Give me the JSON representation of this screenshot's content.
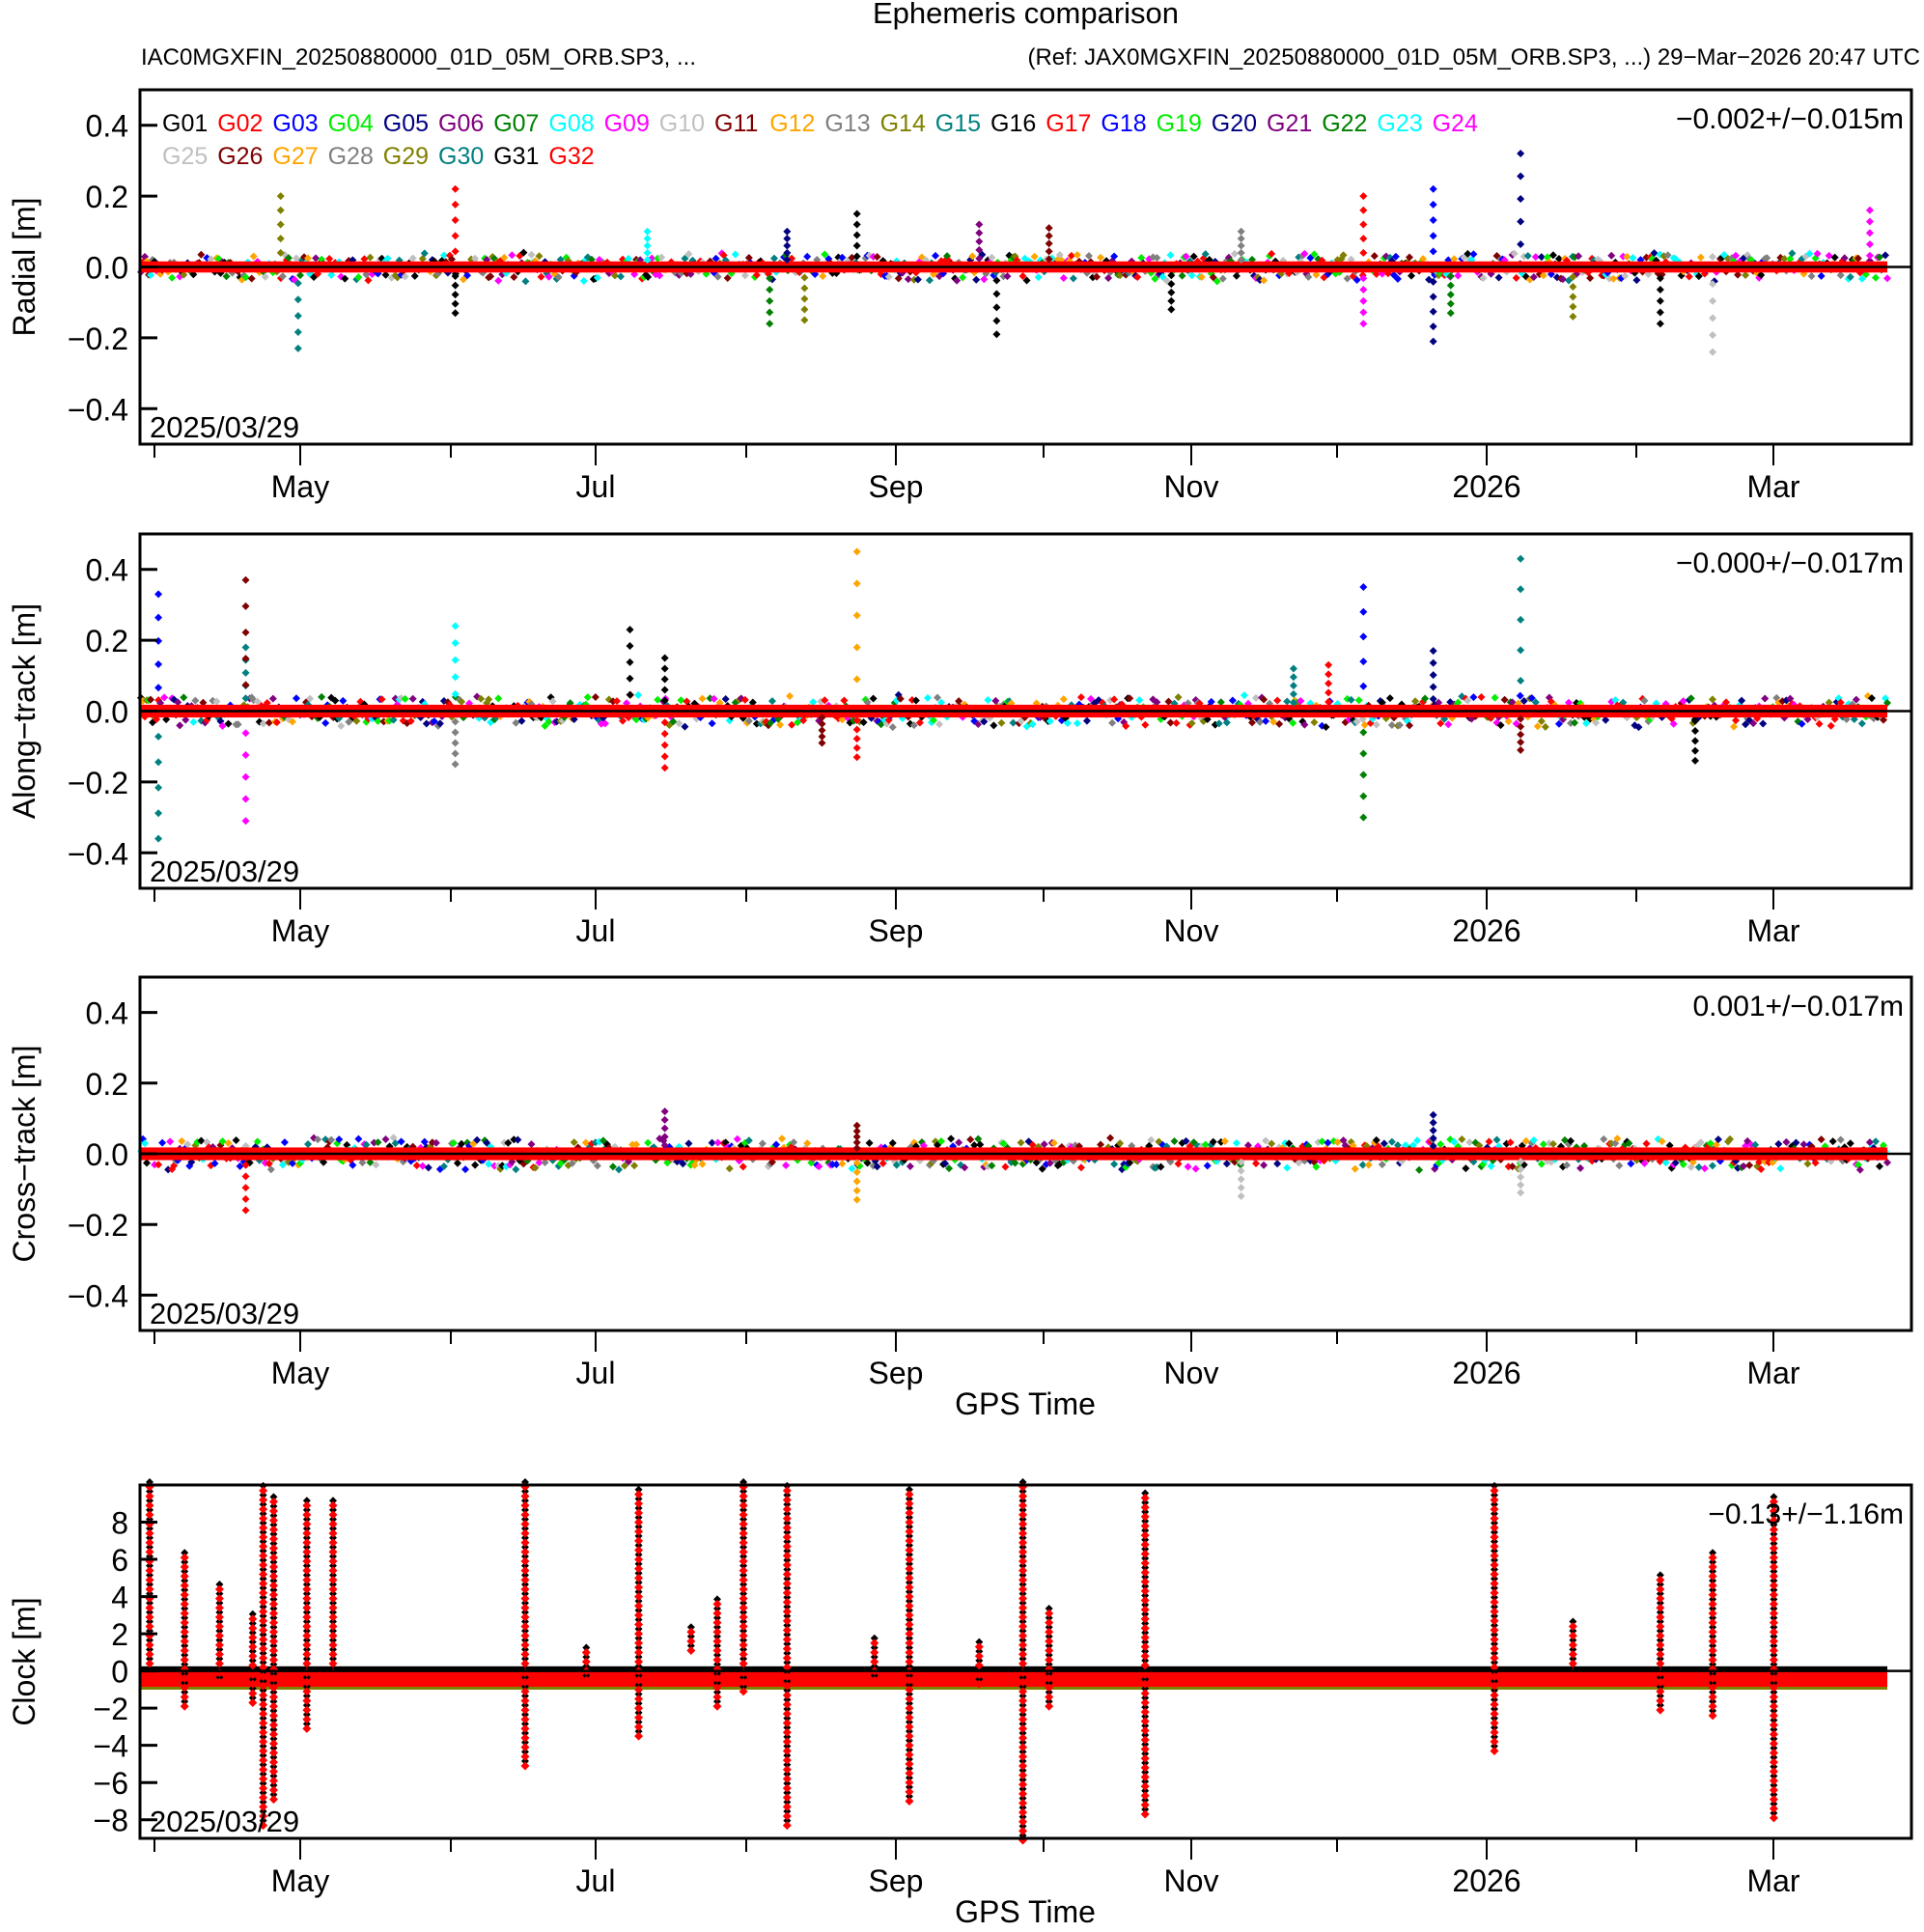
{
  "header": {
    "title": "Ephemeris comparison",
    "subtitle_left": "IAC0MGXFIN_20250880000_01D_05M_ORB.SP3, ...",
    "subtitle_right": "(Ref: JAX0MGXFIN_20250880000_01D_05M_ORB.SP3, ...)  29−Mar−2026 20:47 UTC"
  },
  "chart_data": [
    {
      "type": "scatter",
      "title": "Radial",
      "ylabel": "Radial [m]",
      "xlabel": "",
      "ylim": [
        -0.5,
        0.5
      ],
      "yticks": [
        "0.4",
        "0.2",
        "0.0",
        "−0.2",
        "−0.4"
      ],
      "ytick_values": [
        0.4,
        0.2,
        0.0,
        -0.2,
        -0.4
      ],
      "stat_label": "−0.002+/−0.015m",
      "start_label": "2025/03/29",
      "noise": 0.035,
      "spikes": [
        [
          0.08,
          0.2
        ],
        [
          0.09,
          -0.23
        ],
        [
          0.18,
          0.22
        ],
        [
          0.18,
          -0.13
        ],
        [
          0.29,
          0.1
        ],
        [
          0.36,
          -0.16
        ],
        [
          0.37,
          0.1
        ],
        [
          0.38,
          -0.15
        ],
        [
          0.41,
          0.15
        ],
        [
          0.48,
          0.12
        ],
        [
          0.49,
          -0.19
        ],
        [
          0.52,
          0.11
        ],
        [
          0.59,
          -0.12
        ],
        [
          0.63,
          0.1
        ],
        [
          0.7,
          0.2
        ],
        [
          0.7,
          -0.16
        ],
        [
          0.74,
          0.22
        ],
        [
          0.74,
          -0.21
        ],
        [
          0.75,
          -0.13
        ],
        [
          0.79,
          0.32
        ],
        [
          0.82,
          -0.14
        ],
        [
          0.87,
          -0.16
        ],
        [
          0.9,
          -0.24
        ],
        [
          0.99,
          0.16
        ]
      ]
    },
    {
      "type": "scatter",
      "title": "Along-track",
      "ylabel": "Along−track [m]",
      "xlabel": "",
      "ylim": [
        -0.5,
        0.5
      ],
      "yticks": [
        "0.4",
        "0.2",
        "0.0",
        "−0.2",
        "−0.4"
      ],
      "ytick_values": [
        0.4,
        0.2,
        0.0,
        -0.2,
        -0.4
      ],
      "stat_label": "−0.000+/−0.017m",
      "start_label": "2025/03/29",
      "noise": 0.04,
      "spikes": [
        [
          0.01,
          0.33
        ],
        [
          0.01,
          -0.36
        ],
        [
          0.06,
          0.18
        ],
        [
          0.06,
          0.37
        ],
        [
          0.06,
          -0.31
        ],
        [
          0.18,
          0.24
        ],
        [
          0.18,
          -0.15
        ],
        [
          0.28,
          0.23
        ],
        [
          0.3,
          0.15
        ],
        [
          0.3,
          -0.16
        ],
        [
          0.39,
          -0.09
        ],
        [
          0.41,
          0.45
        ],
        [
          0.41,
          -0.13
        ],
        [
          0.66,
          0.12
        ],
        [
          0.68,
          0.13
        ],
        [
          0.7,
          0.35
        ],
        [
          0.7,
          -0.3
        ],
        [
          0.74,
          0.17
        ],
        [
          0.79,
          0.43
        ],
        [
          0.79,
          -0.11
        ],
        [
          0.89,
          -0.14
        ]
      ]
    },
    {
      "type": "scatter",
      "title": "Cross-track",
      "ylabel": "Cross−track [m]",
      "xlabel": "GPS Time",
      "ylim": [
        -0.5,
        0.5
      ],
      "yticks": [
        "0.4",
        "0.2",
        "0.0",
        "−0.2",
        "−0.4"
      ],
      "ytick_values": [
        0.4,
        0.2,
        0.0,
        -0.2,
        -0.4
      ],
      "stat_label": "0.001+/−0.017m",
      "start_label": "2025/03/29",
      "noise": 0.04,
      "spikes": [
        [
          0.06,
          -0.16
        ],
        [
          0.3,
          0.12
        ],
        [
          0.41,
          -0.13
        ],
        [
          0.41,
          0.08
        ],
        [
          0.63,
          -0.12
        ],
        [
          0.74,
          0.11
        ],
        [
          0.79,
          -0.11
        ]
      ]
    },
    {
      "type": "scatter",
      "title": "Clock",
      "ylabel": "Clock [m]",
      "xlabel": "GPS Time",
      "ylim": [
        -9,
        10
      ],
      "yticks": [
        "8",
        "6",
        "4",
        "2",
        "0",
        "−2",
        "−4",
        "−6",
        "−8"
      ],
      "ytick_values": [
        8,
        6,
        4,
        2,
        0,
        -2,
        -4,
        -6,
        -8
      ],
      "stat_label": "−0.13+/−1.16m",
      "start_label": "2025/03/29",
      "baseline": -0.4,
      "spikes": [
        [
          0.005,
          10,
          0.5
        ],
        [
          0.025,
          6.4,
          -1.8
        ],
        [
          0.045,
          4.9,
          -0.5
        ],
        [
          0.064,
          3,
          -1.6
        ],
        [
          0.07,
          10,
          -8.2
        ],
        [
          0.076,
          9.5,
          -6.8
        ],
        [
          0.095,
          9.4,
          -3
        ],
        [
          0.11,
          9.4,
          0
        ],
        [
          0.22,
          10,
          -5
        ],
        [
          0.255,
          1.3,
          -0.4
        ],
        [
          0.285,
          10,
          -3.4
        ],
        [
          0.315,
          2.2,
          1.2
        ],
        [
          0.33,
          4,
          -1.8
        ],
        [
          0.345,
          10,
          -1
        ],
        [
          0.37,
          10,
          -8.2
        ],
        [
          0.42,
          1.6,
          -0.4
        ],
        [
          0.44,
          9.6,
          -6.9
        ],
        [
          0.48,
          1.8,
          -0.6
        ],
        [
          0.505,
          10,
          -9
        ],
        [
          0.52,
          3.2,
          -1.8
        ],
        [
          0.575,
          9.5,
          -7.6
        ],
        [
          0.775,
          10,
          -4.2
        ],
        [
          0.82,
          2.8,
          0
        ],
        [
          0.87,
          5.2,
          -2
        ],
        [
          0.9,
          6.4,
          -2.3
        ],
        [
          0.935,
          9.6,
          -7.8
        ]
      ]
    }
  ],
  "time_axis": {
    "month_labels": [
      "May",
      "Jul",
      "Sep",
      "Nov",
      "2026",
      "Mar"
    ],
    "xlabel_lower": "GPS Time"
  },
  "legend": {
    "items": [
      {
        "label": "G01",
        "color": "#000000"
      },
      {
        "label": "G02",
        "color": "#ff0000"
      },
      {
        "label": "G03",
        "color": "#0000ff"
      },
      {
        "label": "G04",
        "color": "#00ee00"
      },
      {
        "label": "G05",
        "color": "#000080"
      },
      {
        "label": "G06",
        "color": "#800080"
      },
      {
        "label": "G07",
        "color": "#008000"
      },
      {
        "label": "G08",
        "color": "#00ffff"
      },
      {
        "label": "G09",
        "color": "#ff00ff"
      },
      {
        "label": "G10",
        "color": "#c0c0c0"
      },
      {
        "label": "G11",
        "color": "#800000"
      },
      {
        "label": "G12",
        "color": "#ffa500"
      },
      {
        "label": "G13",
        "color": "#808080"
      },
      {
        "label": "G14",
        "color": "#808000"
      },
      {
        "label": "G15",
        "color": "#008080"
      },
      {
        "label": "G16",
        "color": "#000000"
      },
      {
        "label": "G17",
        "color": "#ff0000"
      },
      {
        "label": "G18",
        "color": "#0000ff"
      },
      {
        "label": "G19",
        "color": "#00ee00"
      },
      {
        "label": "G20",
        "color": "#000080"
      },
      {
        "label": "G21",
        "color": "#800080"
      },
      {
        "label": "G22",
        "color": "#008000"
      },
      {
        "label": "G23",
        "color": "#00ffff"
      },
      {
        "label": "G24",
        "color": "#ff00ff"
      },
      {
        "label": "G25",
        "color": "#c0c0c0"
      },
      {
        "label": "G26",
        "color": "#800000"
      },
      {
        "label": "G27",
        "color": "#ffa500"
      },
      {
        "label": "G28",
        "color": "#808080"
      },
      {
        "label": "G29",
        "color": "#808000"
      },
      {
        "label": "G30",
        "color": "#008080"
      },
      {
        "label": "G31",
        "color": "#000000"
      },
      {
        "label": "G32",
        "color": "#ff0000"
      }
    ]
  }
}
